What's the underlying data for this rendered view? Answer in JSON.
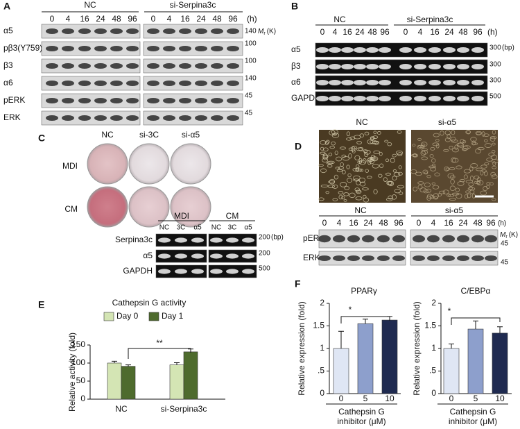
{
  "panel_labels": [
    "A",
    "B",
    "C",
    "D",
    "E",
    "F"
  ],
  "panel_a": {
    "groups": [
      "NC",
      "si-Serpina3c"
    ],
    "times": [
      0,
      4,
      16,
      24,
      48,
      96
    ],
    "time_unit": "(h)",
    "rows": [
      "α5",
      "pβ3(Y759)",
      "β3",
      "α6",
      "pERK",
      "ERK"
    ],
    "markers": [
      140,
      100,
      100,
      140,
      45,
      45
    ],
    "mr_unit": {
      "m": "M",
      "r": "r",
      "k": "(K)"
    }
  },
  "panel_b": {
    "groups": [
      "NC",
      "si-Serpina3c"
    ],
    "times": [
      0,
      4,
      16,
      24,
      48,
      96
    ],
    "time_unit": "(h)",
    "rows": [
      "α5",
      "β3",
      "α6",
      "GAPDH"
    ],
    "markers": [
      300,
      300,
      300,
      500
    ],
    "marker_unit": "(bp)"
  },
  "panel_c": {
    "columns": [
      "NC",
      "si-3C",
      "si-α5"
    ],
    "dish_rows": [
      "MDI",
      "CM"
    ],
    "gel_groups": [
      "MDI",
      "CM"
    ],
    "lanes": [
      "NC",
      "3C",
      "α5"
    ],
    "rows": [
      "Serpina3c",
      "α5",
      "GAPDH"
    ],
    "markers": [
      200,
      200,
      500
    ],
    "marker_unit": "(bp)"
  },
  "panel_d": {
    "image_labels": [
      "NC",
      "si-α5"
    ],
    "groups": [
      "NC",
      "si-α5"
    ],
    "times": [
      0,
      4,
      16,
      24,
      48,
      96
    ],
    "time_unit": "(h)",
    "rows": [
      "pERK",
      "ERK"
    ],
    "markers": [
      45,
      45
    ],
    "mr_unit": {
      "m": "M",
      "r": "r",
      "k": "(K)"
    }
  },
  "chart_data": [
    {
      "type": "bar",
      "title": "Cathepsin G activity",
      "categories": [
        "NC",
        "si-Serpina3c"
      ],
      "series": [
        {
          "name": "Day 0",
          "color": "#d4e5b4",
          "values": [
            100,
            95
          ],
          "errors": [
            5,
            6
          ]
        },
        {
          "name": "Day 1",
          "color": "#4e6b2d",
          "values": [
            91,
            131
          ],
          "errors": [
            4,
            8
          ]
        }
      ],
      "ylim": [
        0,
        150
      ],
      "yticks": [
        0,
        50,
        100,
        150
      ],
      "y_label": "Relative activity (fold)",
      "annotations": [
        "**"
      ]
    },
    {
      "type": "bar",
      "title": "PPARγ",
      "categories": [
        "0",
        "5",
        "10"
      ],
      "values": [
        1.0,
        1.55,
        1.63
      ],
      "errors": [
        0.38,
        0.1,
        0.08
      ],
      "colors": [
        "#dfe6f4",
        "#8d9fcc",
        "#1f2a50"
      ],
      "ylim": [
        0,
        2
      ],
      "yticks": [
        0,
        {
          "value": 0.5,
          "label": ".5"
        },
        1,
        1.5,
        2
      ],
      "y_label": "Relative expression (fold)",
      "x_label": [
        "Cathepsin G",
        "inhibitor (μM)"
      ],
      "annotations": [
        "*"
      ]
    },
    {
      "type": "bar",
      "title": "C/EBPα",
      "categories": [
        "0",
        "5",
        "10"
      ],
      "values": [
        1.0,
        1.43,
        1.34
      ],
      "errors": [
        0.1,
        0.18,
        0.14
      ],
      "colors": [
        "#dfe6f4",
        "#8d9fcc",
        "#1f2a50"
      ],
      "ylim": [
        0,
        2
      ],
      "yticks": [
        0,
        {
          "value": 0.5,
          "label": ".5"
        },
        1,
        1.5,
        2
      ],
      "y_label": "Relative expression (fold)",
      "x_label": [
        "Cathepsin G",
        "inhibitor (μM)"
      ],
      "annotations": [
        "*"
      ]
    }
  ]
}
